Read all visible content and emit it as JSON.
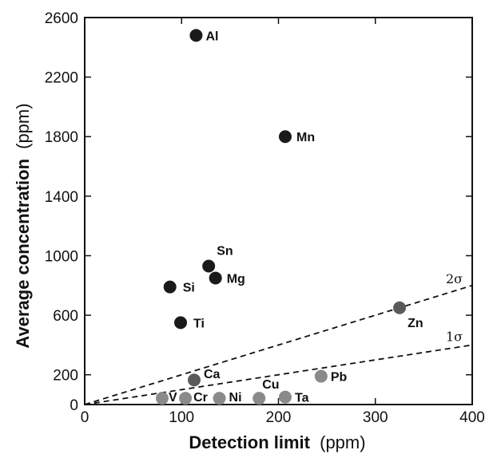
{
  "chart_data": {
    "type": "scatter",
    "xlabel_bold": "Detection limit",
    "xlabel_unit": "(ppm)",
    "ylabel_bold": "Average concentration",
    "ylabel_unit": "(ppm)",
    "xlim": [
      0,
      400
    ],
    "ylim": [
      0,
      2600
    ],
    "xticks": [
      0,
      100,
      200,
      300,
      400
    ],
    "yticks": [
      0,
      200,
      600,
      1000,
      1400,
      1800,
      2200,
      2600
    ],
    "grid": false,
    "points": [
      {
        "label": "Al",
        "x": 115,
        "y": 2480,
        "color": "#1a1a1a"
      },
      {
        "label": "Mn",
        "x": 207,
        "y": 1800,
        "color": "#1a1a1a"
      },
      {
        "label": "Sn",
        "x": 128,
        "y": 930,
        "color": "#1a1a1a"
      },
      {
        "label": "Mg",
        "x": 135,
        "y": 850,
        "color": "#1a1a1a"
      },
      {
        "label": "Si",
        "x": 88,
        "y": 790,
        "color": "#1a1a1a"
      },
      {
        "label": "Ti",
        "x": 99,
        "y": 550,
        "color": "#1a1a1a"
      },
      {
        "label": "Zn",
        "x": 325,
        "y": 650,
        "color": "#5a5a5a"
      },
      {
        "label": "Ca",
        "x": 113,
        "y": 165,
        "color": "#5a5a5a"
      },
      {
        "label": "Pb",
        "x": 244,
        "y": 190,
        "color": "#8a8a8a"
      },
      {
        "label": "V",
        "x": 80,
        "y": 42,
        "color": "#8a8a8a"
      },
      {
        "label": "Cr",
        "x": 104,
        "y": 42,
        "color": "#8a8a8a"
      },
      {
        "label": "Ni",
        "x": 139,
        "y": 42,
        "color": "#8a8a8a"
      },
      {
        "label": "Cu",
        "x": 180,
        "y": 42,
        "color": "#8a8a8a"
      },
      {
        "label": "Ta",
        "x": 207,
        "y": 50,
        "color": "#8a8a8a"
      }
    ],
    "lines": [
      {
        "label": "2σ",
        "x": [
          0,
          400
        ],
        "y": [
          0,
          800
        ],
        "style": "dashed"
      },
      {
        "label": "1σ",
        "x": [
          0,
          400
        ],
        "y": [
          0,
          400
        ],
        "style": "dashed"
      }
    ]
  }
}
